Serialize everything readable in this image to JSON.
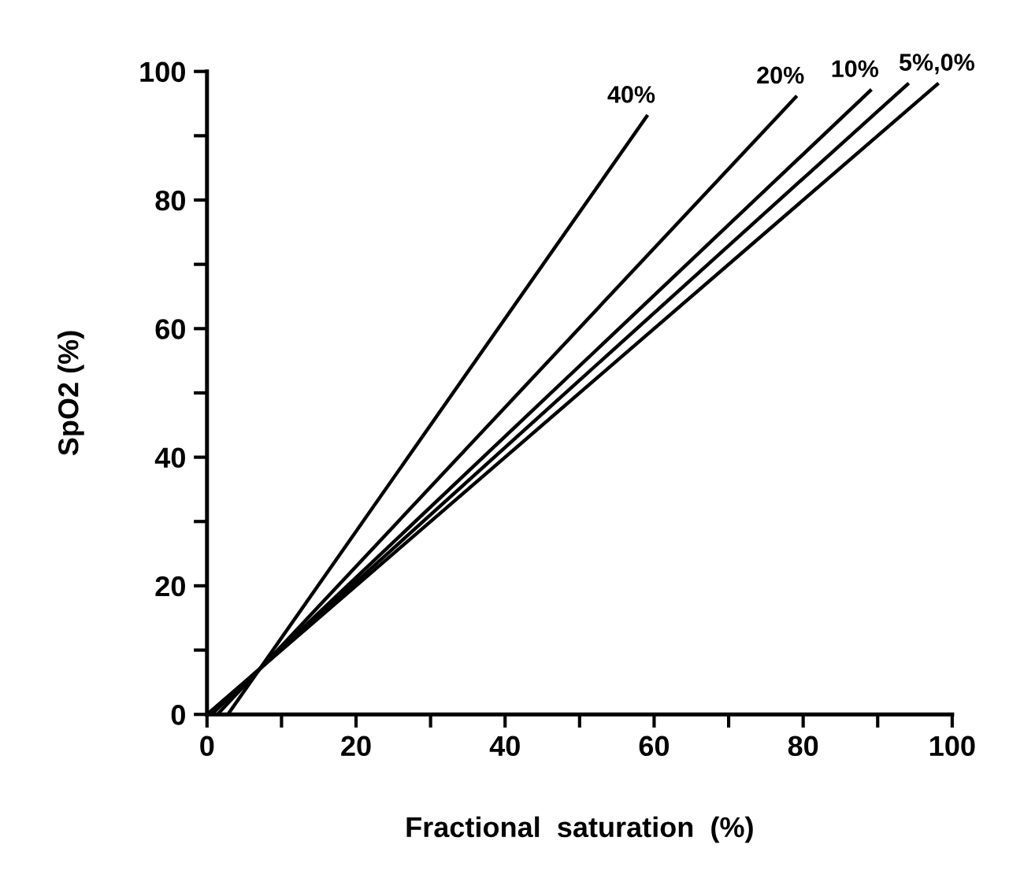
{
  "chart_data": {
    "type": "line",
    "xlabel": "Fractional  saturation  (%)",
    "ylabel": "SpO2 (%)",
    "series": [
      {
        "color": "#000000",
        "x": [
          2.8,
          59
        ],
        "values": [
          0,
          93
        ]
      },
      {
        "color": "#000000",
        "x": [
          1.4,
          79
        ],
        "values": [
          0,
          96
        ]
      },
      {
        "color": "#000000",
        "x": [
          0.6,
          89
        ],
        "values": [
          0,
          97
        ]
      },
      {
        "color": "#000000",
        "x": [
          0.3,
          94
        ],
        "values": [
          0,
          98
        ]
      },
      {
        "color": "#000000",
        "x": [
          0,
          98
        ],
        "values": [
          0,
          98
        ]
      }
    ],
    "annotations": [
      {
        "text": "40%",
        "x": 59,
        "y": 93
      },
      {
        "text": "20%",
        "x": 79,
        "y": 96
      },
      {
        "text": "10%",
        "x": 89,
        "y": 97
      },
      {
        "text": "5%,0%",
        "x": 94,
        "y": 98
      }
    ],
    "xlim": [
      0,
      100
    ],
    "ylim": [
      0,
      100
    ],
    "xticks": [
      0,
      {
        "value": 10,
        "label": null
      },
      20,
      {
        "value": 30,
        "label": null
      },
      40,
      {
        "value": 50,
        "label": null
      },
      60,
      {
        "value": 70,
        "label": null
      },
      80,
      {
        "value": 90,
        "label": null
      },
      100
    ],
    "yticks": [
      0,
      {
        "value": 10,
        "label": null
      },
      20,
      {
        "value": 30,
        "label": null
      },
      40,
      {
        "value": 50,
        "label": null
      },
      60,
      {
        "value": 70,
        "label": null
      },
      80,
      {
        "value": 90,
        "label": null
      },
      100
    ],
    "grid": false,
    "marker": "none",
    "line_style": "solid"
  }
}
